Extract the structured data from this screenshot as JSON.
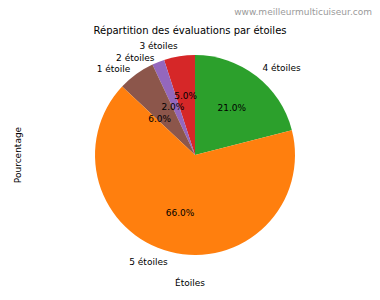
{
  "chart_data": {
    "type": "pie",
    "title": "Répartition des évaluations par étoiles",
    "x_label": "Étoiles",
    "y_label": "Pourcentage",
    "categories": [
      "4 étoiles",
      "3 étoiles",
      "2 étoiles",
      "1 étoile",
      "5 étoiles"
    ],
    "values": [
      21,
      5,
      2,
      6,
      66
    ],
    "value_labels": [
      "21.0%",
      "5.0%",
      "2.0%",
      "6.0%",
      "66.0%"
    ],
    "colors": [
      "#2ca02c",
      "#d62728",
      "#9467bd",
      "#8c564b",
      "#ff7f0e"
    ],
    "data_labels": true,
    "annotations": [
      "www.meilleurmulticuiseur.com"
    ]
  }
}
